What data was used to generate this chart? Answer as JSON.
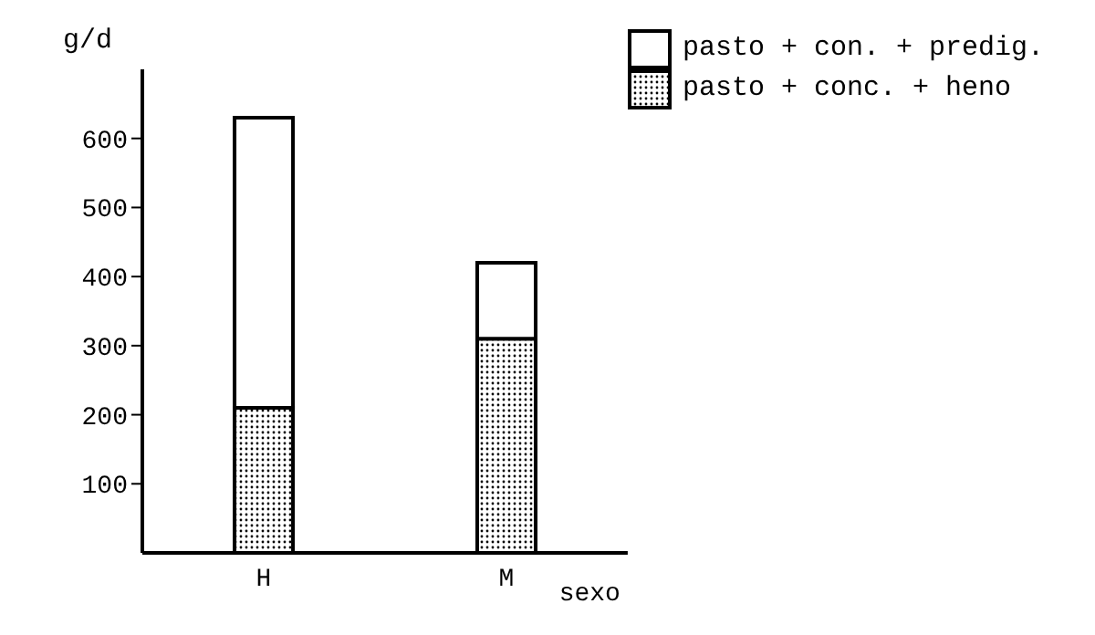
{
  "chart_data": {
    "type": "bar",
    "stacked": true,
    "categories": [
      "H",
      "M"
    ],
    "series": [
      {
        "name": "pasto + conc. + heno",
        "color": "#000000",
        "values": [
          210,
          310
        ]
      },
      {
        "name": "pasto + con. + predig.",
        "color": "#ffffff",
        "values": [
          420,
          110
        ]
      }
    ],
    "ylabel": "g/d",
    "xlabel": "sexo",
    "ylim": [
      0,
      700
    ],
    "yticks": [
      100,
      200,
      300,
      400,
      500,
      600
    ],
    "grid": false,
    "legend": "top right"
  }
}
